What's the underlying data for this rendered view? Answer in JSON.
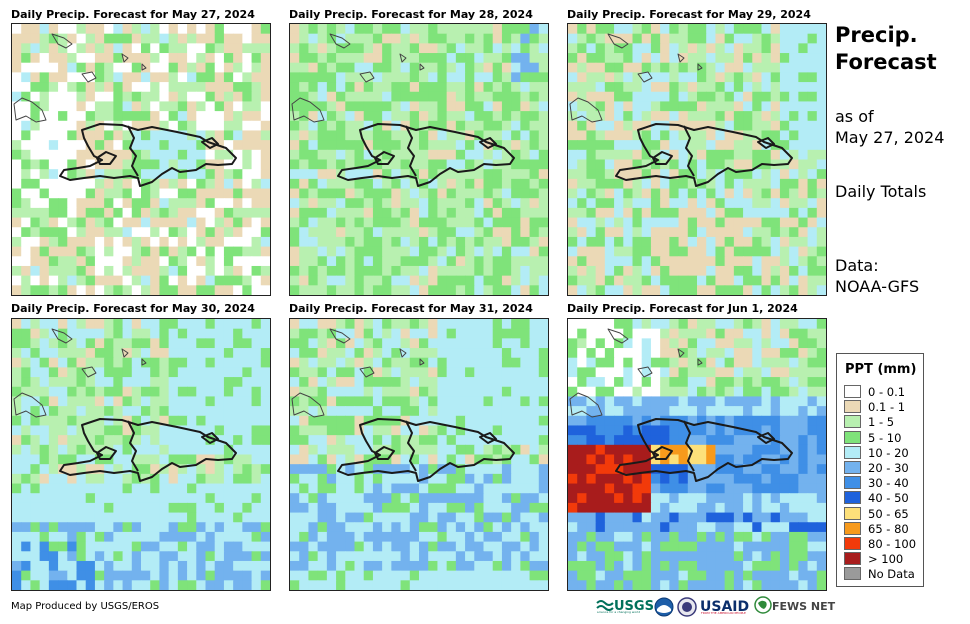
{
  "panels": [
    {
      "title": "Daily Precip. Forecast for May 27, 2024",
      "pattern": "dry"
    },
    {
      "title": "Daily Precip. Forecast for May 28, 2024",
      "pattern": "moist"
    },
    {
      "title": "Daily Precip. Forecast for May 29, 2024",
      "pattern": "mixed"
    },
    {
      "title": "Daily Precip. Forecast for May 30, 2024",
      "pattern": "southwet"
    },
    {
      "title": "Daily Precip. Forecast for May 31, 2024",
      "pattern": "southwet2"
    },
    {
      "title": "Daily Precip. Forecast for Jun 1, 2024",
      "pattern": "storm"
    }
  ],
  "side": {
    "title_line1": "Precip.",
    "title_line2": "Forecast",
    "asof_line1": "as of",
    "asof_line2": "May 27, 2024",
    "totals": "Daily Totals",
    "data_line1": "Data:",
    "data_line2": "NOAA-GFS"
  },
  "legend": {
    "title": "PPT (mm)",
    "items": [
      {
        "label": "0 - 0.1",
        "color": "#ffffff"
      },
      {
        "label": "0.1 - 1",
        "color": "#ebd9b6"
      },
      {
        "label": "1 - 5",
        "color": "#b8f0b0"
      },
      {
        "label": "5 - 10",
        "color": "#7fe37a"
      },
      {
        "label": "10 - 20",
        "color": "#b3ecf6"
      },
      {
        "label": "20 - 30",
        "color": "#73b2ee"
      },
      {
        "label": "30 - 40",
        "color": "#3f8fe6"
      },
      {
        "label": "40 - 50",
        "color": "#1f62dc"
      },
      {
        "label": "50 - 65",
        "color": "#fde07a"
      },
      {
        "label": "65 - 80",
        "color": "#f79a1c"
      },
      {
        "label": "80 - 100",
        "color": "#f23a0a"
      },
      {
        "label": "> 100",
        "color": "#a81c1c"
      },
      {
        "label": "No Data",
        "color": "#9a9a9a"
      }
    ]
  },
  "credit": "Map Produced by USGS/EROS",
  "logos": {
    "usgs": "USGS",
    "usgs_tagline": "science for a changing world",
    "usaid": "USAID",
    "usaid_tagline": "FROM THE AMERICAN PEOPLE",
    "fews": "FEWS NET"
  }
}
